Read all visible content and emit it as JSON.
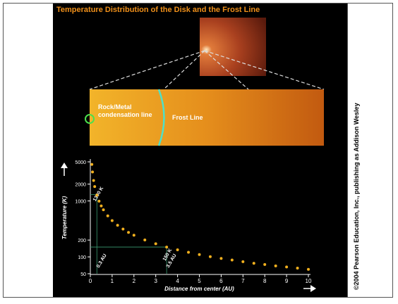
{
  "chart_data": {
    "type": "scatter",
    "title": "Temperature Distribution of the Disk and the Frost Line",
    "x_label": "Distance from center (AU)",
    "y_label": "Temperature (K)",
    "x": [
      0.07,
      0.1,
      0.15,
      0.2,
      0.3,
      0.4,
      0.5,
      0.6,
      0.8,
      1,
      1.25,
      1.5,
      1.75,
      2,
      2.5,
      3,
      3.5,
      4,
      4.5,
      5,
      5.5,
      6,
      6.5,
      7,
      7.5,
      8,
      8.5,
      9,
      9.5,
      10
    ],
    "values": [
      4500,
      3300,
      2320,
      1810,
      1270,
      990,
      815,
      695,
      542,
      446,
      367,
      314,
      274,
      244,
      201,
      172,
      150,
      134,
      121,
      110,
      101,
      94,
      88,
      82,
      77,
      73,
      69,
      66,
      63,
      60
    ],
    "color": "#f2b01e",
    "xlim": [
      0,
      10
    ],
    "xticks": [
      0,
      1,
      2,
      3,
      4,
      5,
      6,
      7,
      8,
      9,
      10
    ],
    "ylim": [
      50,
      5000
    ],
    "yticks": [
      50,
      100,
      200,
      1000,
      2000,
      5000
    ],
    "y_scale": "log",
    "guides": [
      {
        "x": 0.3,
        "y": 1300,
        "label": "1300 K",
        "x_label": "0.3 AU"
      },
      {
        "x": 3.5,
        "y": 150,
        "label": "150 K",
        "x_label": "3.5 AU"
      }
    ]
  },
  "diagram": {
    "rock_metal_label": "Rock/Metal condensation line",
    "frost_label": "Frost Line"
  },
  "credit": "©2004 Pearson Education, Inc., publishing as Addison Wesley"
}
